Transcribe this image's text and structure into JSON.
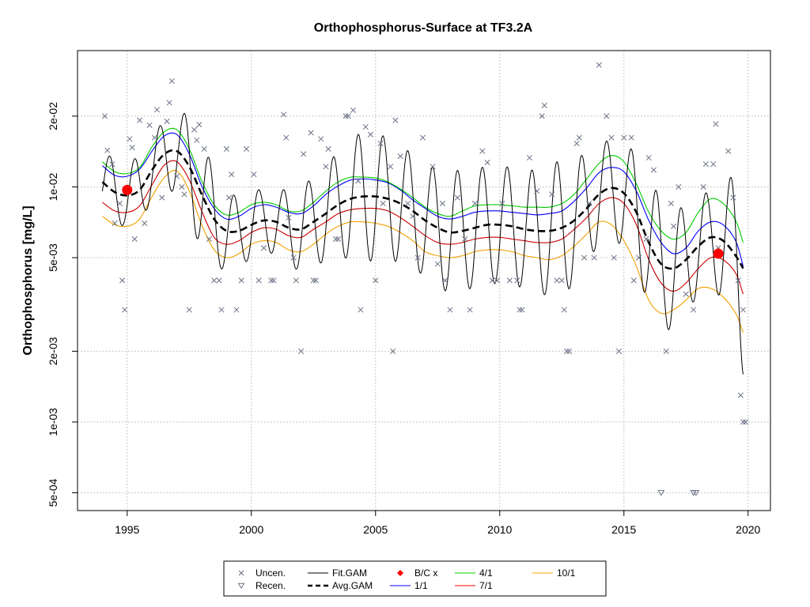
{
  "chart_data": {
    "type": "line",
    "title": "Orthophosphorus-Surface at TF3.2A",
    "xlabel": "",
    "ylabel": "Orthophosphorus [mg/L]",
    "y_scale": "log",
    "xlim": [
      1993.0,
      2020.9
    ],
    "ylim": [
      0.00042,
      0.038
    ],
    "grid": true,
    "x_ticks": [
      1995,
      2000,
      2005,
      2010,
      2015,
      2020
    ],
    "x_tick_labels": [
      "1995",
      "2000",
      "2005",
      "2010",
      "2015",
      "2020"
    ],
    "y_ticks": [
      0.0005,
      0.001,
      0.002,
      0.005,
      0.01,
      0.02
    ],
    "y_tick_labels": [
      "5e-04",
      "1e-03",
      "2e-03",
      "5e-03",
      "1e-02",
      "2e-02"
    ],
    "legend_position": "bottom",
    "legend": [
      {
        "label": "Uncen.",
        "symbol": "x",
        "color": "#6b7285"
      },
      {
        "label": "Recen.",
        "symbol": "triangle-down",
        "color": "#6b7285"
      },
      {
        "label": "Fit.GAM",
        "symbol": "line",
        "color": "#000000"
      },
      {
        "label": "Avg.GAM",
        "symbol": "dashed-line",
        "color": "#000000"
      },
      {
        "label": "B/C x",
        "symbol": "diamond",
        "color": "#ff0000"
      },
      {
        "label": "1/1",
        "symbol": "line",
        "color": "#0000ff"
      },
      {
        "label": "4/1",
        "symbol": "line",
        "color": "#00cc00"
      },
      {
        "label": "7/1",
        "symbol": "line",
        "color": "#ff0000"
      },
      {
        "label": "10/1",
        "symbol": "line",
        "color": "#ffa500"
      }
    ],
    "colors": {
      "point": "#6b7285",
      "fit": "#000000",
      "avg": "#000000",
      "bc": "#ff0000",
      "jan": "#0000ff",
      "apr": "#00cc00",
      "jul": "#cc0000",
      "oct": "#f0a000",
      "grid": "#c8c8c8"
    },
    "avg_gam": {
      "x": [
        1994,
        1994.5,
        1995,
        1995.5,
        1996,
        1996.5,
        1997,
        1997.5,
        1998,
        1998.5,
        1999,
        1999.5,
        2000,
        2000.5,
        2001,
        2001.5,
        2002,
        2002.5,
        2003,
        2003.5,
        2004,
        2004.5,
        2005,
        2005.5,
        2006,
        2006.5,
        2007,
        2007.5,
        2008,
        2008.5,
        2009,
        2009.5,
        2010,
        2010.5,
        2011,
        2011.5,
        2012,
        2012.5,
        2013,
        2013.5,
        2014,
        2014.5,
        2015,
        2015.5,
        2016,
        2016.5,
        2017,
        2017.5,
        2018,
        2018.5,
        2019,
        2019.5,
        2019.8
      ],
      "y": [
        0.0105,
        0.0095,
        0.0092,
        0.0097,
        0.0118,
        0.0138,
        0.0142,
        0.0122,
        0.0093,
        0.0073,
        0.0065,
        0.0065,
        0.0069,
        0.0072,
        0.0071,
        0.0067,
        0.0066,
        0.0071,
        0.0077,
        0.0084,
        0.0089,
        0.0091,
        0.0091,
        0.0089,
        0.0085,
        0.0079,
        0.0072,
        0.0067,
        0.0064,
        0.0065,
        0.0067,
        0.0069,
        0.0069,
        0.0068,
        0.0066,
        0.0065,
        0.0065,
        0.0067,
        0.0072,
        0.0081,
        0.0093,
        0.0099,
        0.0094,
        0.0078,
        0.0058,
        0.0047,
        0.0045,
        0.0049,
        0.0056,
        0.0061,
        0.0059,
        0.0051,
        0.0045
      ],
      "amp": [
        0.13,
        0.14,
        0.13,
        0.15,
        0.12,
        0.16,
        0.17,
        0.22,
        0.24,
        0.2,
        0.17,
        0.14,
        0.15,
        0.13,
        0.14,
        0.16,
        0.18,
        0.19,
        0.2,
        0.23,
        0.25,
        0.28,
        0.27,
        0.26,
        0.25,
        0.24,
        0.24,
        0.25,
        0.26,
        0.26,
        0.25,
        0.25,
        0.25,
        0.25,
        0.25,
        0.26,
        0.28,
        0.29,
        0.27,
        0.23,
        0.21,
        0.21,
        0.23,
        0.24,
        0.27,
        0.28,
        0.26,
        0.22,
        0.21,
        0.2,
        0.26,
        0.34,
        0.45
      ]
    },
    "seasonal_series": [
      {
        "name": "1/1",
        "color": "#0000ff",
        "y": [
          0.0123,
          0.0112,
          0.0111,
          0.0119,
          0.0142,
          0.0165,
          0.0167,
          0.0138,
          0.0101,
          0.0081,
          0.0073,
          0.0075,
          0.0081,
          0.0084,
          0.0082,
          0.0078,
          0.0077,
          0.0083,
          0.0093,
          0.0101,
          0.0107,
          0.0108,
          0.0107,
          0.0104,
          0.0097,
          0.0088,
          0.0081,
          0.0075,
          0.0073,
          0.0075,
          0.0078,
          0.0079,
          0.0079,
          0.0078,
          0.0077,
          0.0076,
          0.0077,
          0.0079,
          0.0087,
          0.0099,
          0.0115,
          0.0121,
          0.0116,
          0.0096,
          0.0072,
          0.0058,
          0.0052,
          0.0055,
          0.0065,
          0.0071,
          0.0069,
          0.0059,
          0.0046
        ]
      },
      {
        "name": "4/1",
        "color": "#00cc00",
        "y": [
          0.0128,
          0.0116,
          0.0114,
          0.0121,
          0.0148,
          0.0172,
          0.0175,
          0.0145,
          0.0106,
          0.0084,
          0.0076,
          0.0078,
          0.0084,
          0.0086,
          0.0084,
          0.0079,
          0.0079,
          0.0086,
          0.0096,
          0.0105,
          0.011,
          0.011,
          0.0109,
          0.0105,
          0.0098,
          0.009,
          0.0082,
          0.0077,
          0.0075,
          0.0079,
          0.0083,
          0.0084,
          0.0084,
          0.0083,
          0.0082,
          0.0082,
          0.0082,
          0.0085,
          0.0093,
          0.0108,
          0.0126,
          0.0136,
          0.0128,
          0.0103,
          0.0078,
          0.0065,
          0.006,
          0.0064,
          0.0078,
          0.0089,
          0.0085,
          0.0072,
          0.0058
        ]
      },
      {
        "name": "7/1",
        "color": "#cc0000",
        "y": [
          0.0086,
          0.0079,
          0.0078,
          0.0083,
          0.0102,
          0.0124,
          0.0128,
          0.0107,
          0.0079,
          0.0061,
          0.0057,
          0.0059,
          0.0064,
          0.0067,
          0.0066,
          0.0062,
          0.0061,
          0.0066,
          0.0071,
          0.0077,
          0.008,
          0.0081,
          0.0081,
          0.0079,
          0.0074,
          0.0068,
          0.0062,
          0.0058,
          0.0057,
          0.0058,
          0.006,
          0.0061,
          0.0061,
          0.006,
          0.0059,
          0.0058,
          0.0058,
          0.006,
          0.0066,
          0.0074,
          0.0085,
          0.009,
          0.0085,
          0.0069,
          0.0049,
          0.0039,
          0.0036,
          0.0039,
          0.0045,
          0.005,
          0.0049,
          0.0043,
          0.0035
        ]
      },
      {
        "name": "10/1",
        "color": "#f0a000",
        "y": [
          0.0075,
          0.0069,
          0.0068,
          0.0073,
          0.0091,
          0.011,
          0.0117,
          0.0096,
          0.0069,
          0.0054,
          0.005,
          0.0052,
          0.0057,
          0.0059,
          0.0058,
          0.0054,
          0.0053,
          0.0057,
          0.0063,
          0.0068,
          0.0071,
          0.0071,
          0.007,
          0.0068,
          0.0064,
          0.0059,
          0.0053,
          0.0051,
          0.005,
          0.0051,
          0.0053,
          0.0054,
          0.0054,
          0.0053,
          0.0051,
          0.005,
          0.0049,
          0.0051,
          0.0056,
          0.0063,
          0.0071,
          0.0069,
          0.0059,
          0.0046,
          0.0033,
          0.0029,
          0.003,
          0.0033,
          0.0037,
          0.0037,
          0.0034,
          0.0029,
          0.0024
        ]
      }
    ],
    "bc_points": [
      {
        "x": 1995.0,
        "y": 0.0097
      },
      {
        "x": 2018.8,
        "y": 0.0052
      }
    ],
    "censored_points": [
      {
        "x": 2016.5,
        "y": 0.0005
      },
      {
        "x": 2017.8,
        "y": 0.0005
      },
      {
        "x": 2017.9,
        "y": 0.0005
      }
    ],
    "points": [
      {
        "x": 1994.1,
        "y": 0.02
      },
      {
        "x": 1994.2,
        "y": 0.0143
      },
      {
        "x": 1994.4,
        "y": 0.0125
      },
      {
        "x": 1994.5,
        "y": 0.007
      },
      {
        "x": 1994.7,
        "y": 0.0085
      },
      {
        "x": 1994.8,
        "y": 0.004
      },
      {
        "x": 1994.9,
        "y": 0.003
      },
      {
        "x": 1995.1,
        "y": 0.016
      },
      {
        "x": 1995.2,
        "y": 0.0147
      },
      {
        "x": 1995.3,
        "y": 0.006
      },
      {
        "x": 1995.5,
        "y": 0.0192
      },
      {
        "x": 1995.7,
        "y": 0.007
      },
      {
        "x": 1995.9,
        "y": 0.0183
      },
      {
        "x": 1996.1,
        "y": 0.0162
      },
      {
        "x": 1996.2,
        "y": 0.0213
      },
      {
        "x": 1996.4,
        "y": 0.009
      },
      {
        "x": 1996.6,
        "y": 0.019
      },
      {
        "x": 1996.7,
        "y": 0.0228
      },
      {
        "x": 1996.8,
        "y": 0.0282
      },
      {
        "x": 1997.0,
        "y": 0.0111
      },
      {
        "x": 1997.2,
        "y": 0.01
      },
      {
        "x": 1997.3,
        "y": 0.0093
      },
      {
        "x": 1997.5,
        "y": 0.003
      },
      {
        "x": 1997.7,
        "y": 0.0175
      },
      {
        "x": 1997.8,
        "y": 0.0158
      },
      {
        "x": 1997.9,
        "y": 0.0184
      },
      {
        "x": 1998.1,
        "y": 0.0145
      },
      {
        "x": 1998.3,
        "y": 0.006
      },
      {
        "x": 1998.5,
        "y": 0.004
      },
      {
        "x": 1998.7,
        "y": 0.004
      },
      {
        "x": 1998.8,
        "y": 0.003
      },
      {
        "x": 1999.0,
        "y": 0.0145
      },
      {
        "x": 1999.1,
        "y": 0.009
      },
      {
        "x": 1999.2,
        "y": 0.0113
      },
      {
        "x": 1999.4,
        "y": 0.003
      },
      {
        "x": 1999.6,
        "y": 0.004
      },
      {
        "x": 1999.8,
        "y": 0.0145
      },
      {
        "x": 2000.1,
        "y": 0.0113
      },
      {
        "x": 2000.3,
        "y": 0.004
      },
      {
        "x": 2000.5,
        "y": 0.0055
      },
      {
        "x": 2000.8,
        "y": 0.004
      },
      {
        "x": 2000.9,
        "y": 0.004
      },
      {
        "x": 2001.3,
        "y": 0.0203
      },
      {
        "x": 2001.4,
        "y": 0.0162
      },
      {
        "x": 2001.5,
        "y": 0.0074
      },
      {
        "x": 2001.7,
        "y": 0.005
      },
      {
        "x": 2001.8,
        "y": 0.004
      },
      {
        "x": 2002.0,
        "y": 0.002
      },
      {
        "x": 2002.1,
        "y": 0.0138
      },
      {
        "x": 2002.4,
        "y": 0.017
      },
      {
        "x": 2002.5,
        "y": 0.004
      },
      {
        "x": 2002.6,
        "y": 0.004
      },
      {
        "x": 2002.8,
        "y": 0.016
      },
      {
        "x": 2003.0,
        "y": 0.0122
      },
      {
        "x": 2003.1,
        "y": 0.0145
      },
      {
        "x": 2003.4,
        "y": 0.006
      },
      {
        "x": 2003.5,
        "y": 0.006
      },
      {
        "x": 2003.8,
        "y": 0.02
      },
      {
        "x": 2003.9,
        "y": 0.02
      },
      {
        "x": 2004.1,
        "y": 0.0212
      },
      {
        "x": 2004.3,
        "y": 0.0106
      },
      {
        "x": 2004.4,
        "y": 0.003
      },
      {
        "x": 2004.6,
        "y": 0.018
      },
      {
        "x": 2004.8,
        "y": 0.0167
      },
      {
        "x": 2005.0,
        "y": 0.004
      },
      {
        "x": 2005.2,
        "y": 0.0153
      },
      {
        "x": 2005.3,
        "y": 0.0085
      },
      {
        "x": 2005.6,
        "y": 0.0122
      },
      {
        "x": 2005.7,
        "y": 0.002
      },
      {
        "x": 2005.8,
        "y": 0.0192
      },
      {
        "x": 2006.0,
        "y": 0.0135
      },
      {
        "x": 2006.3,
        "y": 0.0085
      },
      {
        "x": 2006.5,
        "y": 0.0075
      },
      {
        "x": 2006.7,
        "y": 0.005
      },
      {
        "x": 2006.9,
        "y": 0.0162
      },
      {
        "x": 2007.3,
        "y": 0.0122
      },
      {
        "x": 2007.5,
        "y": 0.0047
      },
      {
        "x": 2007.7,
        "y": 0.0085
      },
      {
        "x": 2007.8,
        "y": 0.004
      },
      {
        "x": 2008.0,
        "y": 0.003
      },
      {
        "x": 2008.3,
        "y": 0.009
      },
      {
        "x": 2008.6,
        "y": 0.006
      },
      {
        "x": 2008.8,
        "y": 0.003
      },
      {
        "x": 2009.0,
        "y": 0.0085
      },
      {
        "x": 2009.3,
        "y": 0.0142
      },
      {
        "x": 2009.5,
        "y": 0.0127
      },
      {
        "x": 2009.7,
        "y": 0.004
      },
      {
        "x": 2009.9,
        "y": 0.004
      },
      {
        "x": 2010.1,
        "y": 0.0085
      },
      {
        "x": 2010.4,
        "y": 0.004
      },
      {
        "x": 2010.7,
        "y": 0.004
      },
      {
        "x": 2010.8,
        "y": 0.003
      },
      {
        "x": 2010.9,
        "y": 0.003
      },
      {
        "x": 2011.2,
        "y": 0.0133
      },
      {
        "x": 2011.5,
        "y": 0.0096
      },
      {
        "x": 2011.7,
        "y": 0.02
      },
      {
        "x": 2011.8,
        "y": 0.0222
      },
      {
        "x": 2012.1,
        "y": 0.0093
      },
      {
        "x": 2012.3,
        "y": 0.004
      },
      {
        "x": 2012.5,
        "y": 0.004
      },
      {
        "x": 2012.6,
        "y": 0.003
      },
      {
        "x": 2012.7,
        "y": 0.002
      },
      {
        "x": 2012.8,
        "y": 0.002
      },
      {
        "x": 2013.1,
        "y": 0.0153
      },
      {
        "x": 2013.2,
        "y": 0.0162
      },
      {
        "x": 2013.4,
        "y": 0.005
      },
      {
        "x": 2013.6,
        "y": 0.0085
      },
      {
        "x": 2013.8,
        "y": 0.005
      },
      {
        "x": 2014.0,
        "y": 0.033
      },
      {
        "x": 2014.3,
        "y": 0.02
      },
      {
        "x": 2014.5,
        "y": 0.0162
      },
      {
        "x": 2014.6,
        "y": 0.005
      },
      {
        "x": 2014.8,
        "y": 0.002
      },
      {
        "x": 2015.0,
        "y": 0.0162
      },
      {
        "x": 2015.3,
        "y": 0.0162
      },
      {
        "x": 2015.4,
        "y": 0.004
      },
      {
        "x": 2015.6,
        "y": 0.005
      },
      {
        "x": 2015.9,
        "y": 0.006
      },
      {
        "x": 2016.0,
        "y": 0.0133
      },
      {
        "x": 2016.2,
        "y": 0.0118
      },
      {
        "x": 2016.7,
        "y": 0.002
      },
      {
        "x": 2016.9,
        "y": 0.0085
      },
      {
        "x": 2017.0,
        "y": 0.0068
      },
      {
        "x": 2017.2,
        "y": 0.01
      },
      {
        "x": 2017.5,
        "y": 0.0035
      },
      {
        "x": 2017.8,
        "y": 0.003
      },
      {
        "x": 2018.2,
        "y": 0.01
      },
      {
        "x": 2018.3,
        "y": 0.0125
      },
      {
        "x": 2018.6,
        "y": 0.0125
      },
      {
        "x": 2018.7,
        "y": 0.0185
      },
      {
        "x": 2018.8,
        "y": 0.0055
      },
      {
        "x": 2019.2,
        "y": 0.0142
      },
      {
        "x": 2019.4,
        "y": 0.009
      },
      {
        "x": 2019.6,
        "y": 0.004
      },
      {
        "x": 2019.7,
        "y": 0.0013
      },
      {
        "x": 2019.8,
        "y": 0.003
      },
      {
        "x": 2019.8,
        "y": 0.001
      },
      {
        "x": 2019.9,
        "y": 0.001
      }
    ]
  }
}
